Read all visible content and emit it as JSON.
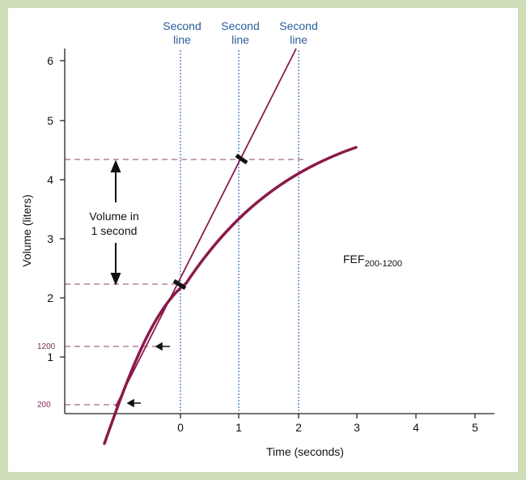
{
  "colors": {
    "border": "#cfdcb8",
    "curve": "#8b1a4a",
    "dashed": "#a06a8a",
    "vertical_dotted": "#3a6fb0",
    "axis": "#222222",
    "blue_text": "#2a5f9a"
  },
  "top_labels": [
    {
      "line1": "Second",
      "line2": "line"
    },
    {
      "line1": "Second",
      "line2": "line"
    },
    {
      "line1": "Second",
      "line2": "line"
    }
  ],
  "axes": {
    "xlabel": "Time (seconds)",
    "ylabel": "Volume (liters)",
    "x_ticks": [
      "0",
      "1",
      "2",
      "3",
      "4",
      "5"
    ],
    "y_ticks": [
      "1",
      "2",
      "3",
      "4",
      "5",
      "6"
    ],
    "y_extra_ticks": [
      "200",
      "1200"
    ]
  },
  "annotation": {
    "line1": "Volume in",
    "line2": "1 second"
  },
  "fef": {
    "base": "FEF",
    "sub": "200-1200"
  },
  "icons": {
    "arrow_200": "left-arrow-icon",
    "arrow_1200": "left-arrow-icon",
    "double_arrow": "vertical-double-arrow-icon"
  }
}
